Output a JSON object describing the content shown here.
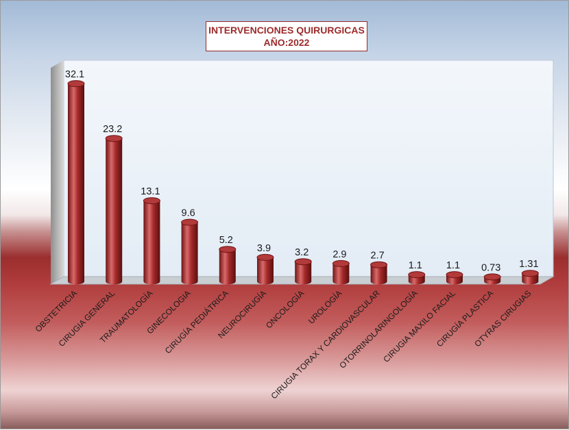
{
  "chart_data": {
    "type": "bar",
    "title": "INTERVENCIONES QUIRURGICAS",
    "subtitle": "AÑO:2022",
    "categories": [
      "OBSTETRICIA",
      "CIRUGIA GENERAL",
      "TRAUMATOLOGÍA",
      "GINECOLOGIA",
      "CIRUGÍA PEDIÁTRICA",
      "NEUROCIRUGÍA",
      "ONCOLOGÍA",
      "UROLOGÍA",
      "CIRUGIA TORAX Y CARDIOVASCULAR",
      "OTORRINOLARINGOLOGÍA",
      "CIRUGIA MAXILO FACIAL",
      "CIRUGÍA PLASTICA",
      "OTYRAS CIRUGIAS"
    ],
    "values": [
      32.1,
      23.2,
      13.1,
      9.6,
      5.2,
      3.9,
      3.2,
      2.9,
      2.7,
      1.1,
      1.1,
      0.73,
      1.31
    ],
    "value_labels": [
      "32.1",
      "23.2",
      "13.1",
      "9.6",
      "5.2",
      "3.9",
      "3.2",
      "2.9",
      "2.7",
      "1.1",
      "1.1",
      "0.73",
      "1.31"
    ],
    "ylim": [
      0,
      35
    ],
    "grid": false,
    "legend": "none",
    "colors": {
      "bar": "#a52a2a",
      "bar_dark": "#6e1414",
      "bar_light": "#d96a6a",
      "title_text": "#9c2a2a"
    }
  }
}
